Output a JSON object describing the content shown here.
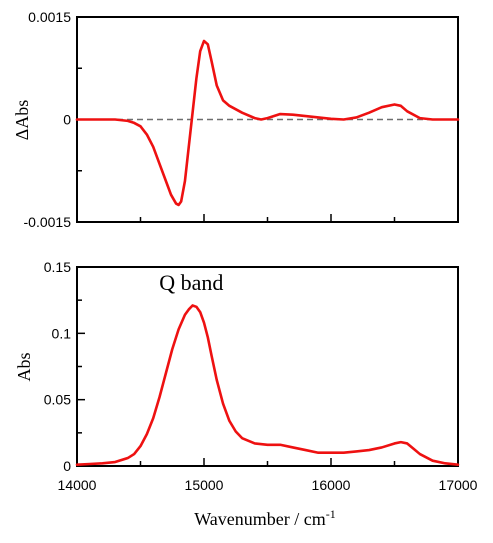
{
  "chart_data": [
    {
      "type": "line",
      "ylabel": "ΔAbs",
      "xlim": [
        14000,
        17000
      ],
      "ylim": [
        -0.0015,
        0.0015
      ],
      "yticks": [
        "0.0015",
        "0",
        "-0.0015"
      ],
      "yticks_values": [
        0.0015,
        0,
        -0.0015
      ],
      "zero_line": "dashed gray",
      "series": [
        {
          "color": "#ee1111",
          "x": [
            14000,
            14150,
            14300,
            14400,
            14450,
            14500,
            14550,
            14600,
            14650,
            14700,
            14740,
            14780,
            14800,
            14820,
            14850,
            14880,
            14910,
            14940,
            14970,
            15000,
            15030,
            15060,
            15100,
            15150,
            15200,
            15300,
            15400,
            15450,
            15500,
            15600,
            15700,
            15800,
            15900,
            16000,
            16100,
            16200,
            16300,
            16400,
            16500,
            16550,
            16600,
            16700,
            16800,
            16900,
            17000
          ],
          "y": [
            0.0,
            0.0,
            0.0,
            -2e-05,
            -5e-05,
            -0.0001,
            -0.00022,
            -0.0004,
            -0.00065,
            -0.0009,
            -0.0011,
            -0.00123,
            -0.00125,
            -0.0012,
            -0.0009,
            -0.0004,
            0.0001,
            0.0006,
            0.001,
            0.00115,
            0.0011,
            0.00085,
            0.0005,
            0.00028,
            0.0002,
            0.0001,
            2e-05,
            0.0,
            2e-05,
            8e-05,
            7e-05,
            5e-05,
            3e-05,
            1e-05,
            0.0,
            3e-05,
            0.0001,
            0.00018,
            0.00022,
            0.0002,
            0.00012,
            2e-05,
            0.0,
            0.0,
            0.0
          ]
        }
      ]
    },
    {
      "type": "line",
      "xlabel": "Wavenumber / cm",
      "xlabel_sup": "-1",
      "ylabel": "Abs",
      "xlim": [
        14000,
        17000
      ],
      "ylim": [
        0,
        0.15
      ],
      "xticks": [
        "14000",
        "15000",
        "16000",
        "17000"
      ],
      "xticks_values": [
        14000,
        15000,
        16000,
        17000
      ],
      "yticks": [
        "0.15",
        "0.1",
        "0.05",
        "0"
      ],
      "yticks_values": [
        0.15,
        0.1,
        0.05,
        0
      ],
      "annotations": [
        {
          "text": "Q band",
          "x": 14900,
          "y": 0.125
        }
      ],
      "series": [
        {
          "color": "#ee1111",
          "x": [
            14000,
            14100,
            14200,
            14300,
            14400,
            14450,
            14500,
            14550,
            14600,
            14650,
            14700,
            14750,
            14800,
            14850,
            14880,
            14910,
            14940,
            14970,
            15000,
            15030,
            15060,
            15100,
            15150,
            15200,
            15250,
            15300,
            15400,
            15500,
            15600,
            15700,
            15800,
            15900,
            16000,
            16100,
            16200,
            16300,
            16400,
            16500,
            16550,
            16600,
            16650,
            16700,
            16800,
            16900,
            17000
          ],
          "y": [
            0.001,
            0.0015,
            0.002,
            0.003,
            0.006,
            0.009,
            0.015,
            0.024,
            0.036,
            0.052,
            0.07,
            0.088,
            0.103,
            0.114,
            0.118,
            0.121,
            0.12,
            0.116,
            0.108,
            0.097,
            0.083,
            0.065,
            0.047,
            0.034,
            0.026,
            0.021,
            0.017,
            0.016,
            0.016,
            0.014,
            0.012,
            0.01,
            0.01,
            0.01,
            0.011,
            0.012,
            0.014,
            0.017,
            0.018,
            0.017,
            0.013,
            0.009,
            0.004,
            0.002,
            0.001
          ]
        }
      ]
    }
  ]
}
